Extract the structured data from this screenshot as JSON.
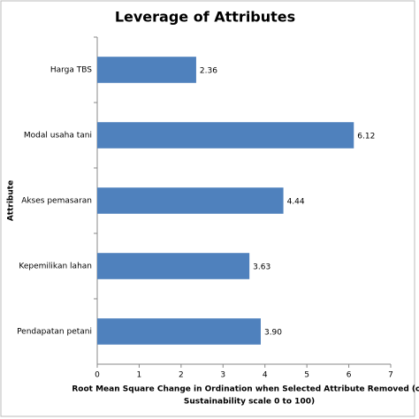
{
  "chart_data": {
    "type": "barh",
    "title": "Leverage of Attributes",
    "categories": [
      "Harga TBS",
      "Modal usaha tani",
      "Akses pemasaran",
      "Kepemilikan lahan",
      "Pendapatan petani"
    ],
    "values": [
      2.36,
      6.12,
      4.44,
      3.63,
      3.9
    ],
    "value_labels": [
      "2.36",
      "6.12",
      "4.44",
      "3.63",
      "3.90"
    ],
    "color": "#4f81bd",
    "xlim": [
      0,
      7
    ],
    "xticks": [
      0,
      1,
      2,
      3,
      4,
      5,
      6,
      7
    ],
    "xlabel": [
      "Root Mean Square Change in Ordination when Selected Attribute Removed (on",
      "Sustainability scale 0 to 100)"
    ],
    "ylabel": "Attribute",
    "grid": false
  }
}
